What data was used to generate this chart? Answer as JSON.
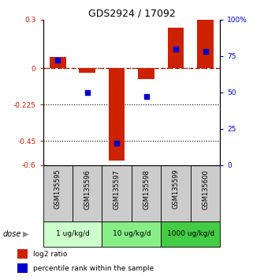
{
  "title": "GDS2924 / 17092",
  "samples": [
    "GSM135595",
    "GSM135596",
    "GSM135597",
    "GSM135598",
    "GSM135599",
    "GSM135600"
  ],
  "log2_ratio": [
    0.07,
    -0.03,
    -0.57,
    -0.07,
    0.25,
    0.3
  ],
  "percentile_rank": [
    72,
    50,
    15,
    47,
    80,
    78
  ],
  "bar_color": "#cc2200",
  "dot_color": "#0000cc",
  "left_ylim": [
    -0.6,
    0.3
  ],
  "right_ylim": [
    0,
    100
  ],
  "left_yticks": [
    0.3,
    0.0,
    -0.225,
    -0.45,
    -0.6
  ],
  "left_ytick_labels": [
    "0.3",
    "0",
    "-0.225",
    "-0.45",
    "-0.6"
  ],
  "right_yticks": [
    100,
    75,
    50,
    25,
    0
  ],
  "right_ytick_labels": [
    "100%",
    "75",
    "50",
    "25",
    "0"
  ],
  "dotted_lines": [
    -0.225,
    -0.45
  ],
  "dose_groups": [
    {
      "label": "1 ug/kg/d",
      "cols": [
        0,
        1
      ],
      "color": "#ccffcc"
    },
    {
      "label": "10 ug/kg/d",
      "cols": [
        2,
        3
      ],
      "color": "#88ee88"
    },
    {
      "label": "1000 ug/kg/d",
      "cols": [
        4,
        5
      ],
      "color": "#44cc44"
    }
  ],
  "dose_label": "dose",
  "legend_red_label": "log2 ratio",
  "legend_blue_label": "percentile rank within the sample",
  "bar_width": 0.55,
  "dot_size": 18,
  "cell_color": "#cccccc"
}
